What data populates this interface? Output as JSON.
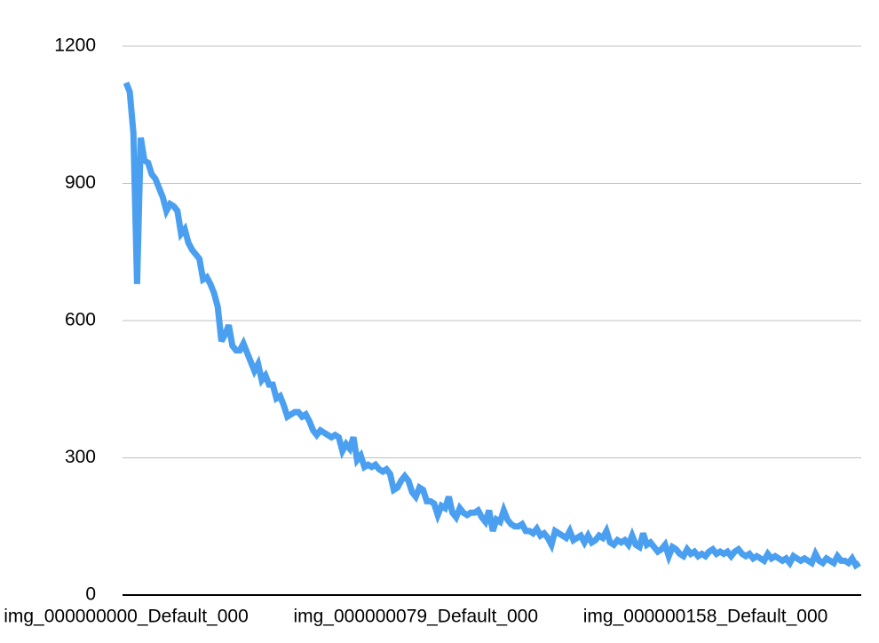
{
  "chart_data": {
    "type": "line",
    "categories": [
      "img_000000000_Default_000",
      null,
      null,
      null,
      null,
      null,
      null,
      null,
      null,
      null,
      null,
      null,
      null,
      null,
      null,
      null,
      null,
      null,
      null,
      null,
      null,
      null,
      null,
      null,
      null,
      null,
      null,
      null,
      null,
      null,
      null,
      null,
      null,
      null,
      null,
      null,
      null,
      null,
      null,
      null,
      null,
      null,
      null,
      null,
      null,
      null,
      null,
      null,
      null,
      null,
      null,
      null,
      null,
      null,
      null,
      null,
      null,
      null,
      null,
      null,
      null,
      null,
      null,
      null,
      null,
      null,
      null,
      null,
      null,
      null,
      null,
      null,
      null,
      null,
      null,
      null,
      null,
      null,
      null,
      "img_000000079_Default_000",
      null,
      null,
      null,
      null,
      null,
      null,
      null,
      null,
      null,
      null,
      null,
      null,
      null,
      null,
      null,
      null,
      null,
      null,
      null,
      null,
      null,
      null,
      null,
      null,
      null,
      null,
      null,
      null,
      null,
      null,
      null,
      null,
      null,
      null,
      null,
      null,
      null,
      null,
      null,
      null,
      null,
      null,
      null,
      null,
      null,
      null,
      null,
      null,
      null,
      null,
      null,
      null,
      null,
      null,
      null,
      null,
      null,
      null,
      null,
      null,
      null,
      null,
      null,
      null,
      null,
      null,
      null,
      null,
      null,
      null,
      null,
      null,
      null,
      null,
      null,
      null,
      null,
      null,
      "img_000000158_Default_000",
      null,
      null,
      null,
      null,
      null,
      null,
      null,
      null,
      null,
      null,
      null,
      null,
      null,
      null,
      null,
      null,
      null,
      null,
      null,
      null,
      null,
      null,
      null,
      null,
      null,
      null,
      null,
      null,
      null,
      null,
      null,
      null,
      null,
      null,
      null,
      null,
      null,
      null,
      null,
      null,
      null,
      null
    ],
    "series": [
      {
        "color": "#4a9ff0",
        "values": [
          1120,
          1100,
          1010,
          680,
          1000,
          950,
          945,
          920,
          910,
          890,
          870,
          840,
          855,
          850,
          840,
          790,
          800,
          770,
          755,
          745,
          735,
          690,
          695,
          680,
          660,
          630,
          555,
          570,
          590,
          545,
          535,
          535,
          550,
          530,
          510,
          490,
          505,
          470,
          480,
          460,
          460,
          430,
          435,
          415,
          390,
          395,
          400,
          400,
          390,
          395,
          380,
          360,
          350,
          360,
          355,
          350,
          345,
          350,
          345,
          315,
          330,
          320,
          345,
          295,
          305,
          280,
          285,
          280,
          285,
          275,
          270,
          275,
          265,
          230,
          235,
          250,
          260,
          250,
          225,
          215,
          235,
          230,
          205,
          205,
          200,
          175,
          195,
          190,
          215,
          180,
          170,
          190,
          180,
          175,
          180,
          180,
          185,
          170,
          160,
          185,
          140,
          165,
          160,
          185,
          165,
          155,
          150,
          150,
          155,
          140,
          140,
          135,
          145,
          130,
          135,
          125,
          110,
          140,
          135,
          130,
          125,
          140,
          120,
          125,
          130,
          115,
          130,
          115,
          120,
          130,
          125,
          140,
          115,
          110,
          120,
          115,
          120,
          110,
          130,
          110,
          105,
          135,
          110,
          115,
          105,
          95,
          100,
          110,
          85,
          105,
          100,
          90,
          85,
          100,
          90,
          95,
          85,
          90,
          85,
          95,
          100,
          90,
          95,
          90,
          95,
          85,
          95,
          100,
          90,
          85,
          90,
          80,
          85,
          80,
          75,
          90,
          80,
          85,
          80,
          75,
          80,
          70,
          85,
          80,
          75,
          80,
          75,
          70,
          90,
          75,
          70,
          80,
          75,
          70,
          85,
          75,
          75,
          70,
          80,
          65,
          70
        ]
      }
    ],
    "ylim": [
      0,
      1200
    ],
    "yticks": [
      0,
      300,
      600,
      900,
      1200
    ],
    "grid": true
  }
}
